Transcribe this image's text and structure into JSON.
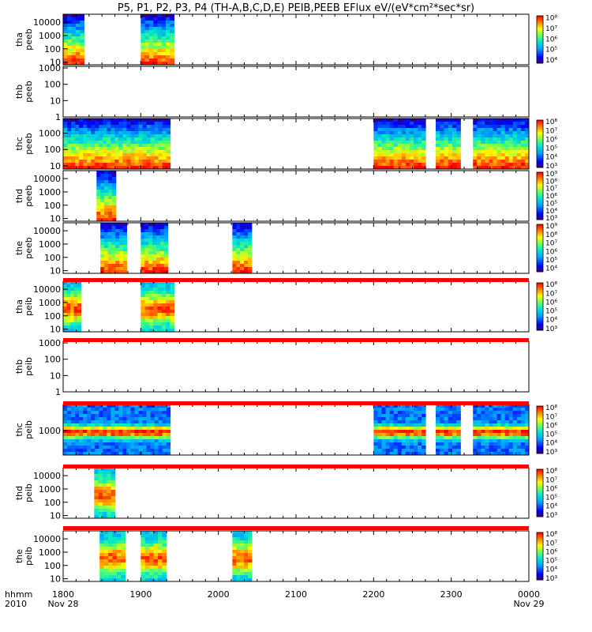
{
  "chart_data": {
    "type": "heatmap",
    "title": "P5, P1, P2, P3, P4 (TH-A,B,C,D,E) PEIB,PEEB EFlux eV/(eV*cm²*sec*sr)",
    "x_axis": {
      "start_hour": 18.0,
      "end_hour": 24.0,
      "ticks": [
        "1800",
        "1900",
        "2000",
        "2100",
        "2200",
        "2300",
        "0000"
      ],
      "left_label_line1": "hhmm",
      "left_label_line2": "2010",
      "start_date": "Nov 28",
      "end_date": "Nov 29"
    },
    "panels": [
      {
        "probe": "tha",
        "product": "peeb",
        "ytick_labels": [
          "10000",
          "1000",
          "100",
          "10"
        ],
        "ylim_log": [
          0.8,
          4.6
        ],
        "colorbar_labels": [
          "10⁸",
          "10⁷",
          "10⁶",
          "10⁵",
          "10⁴"
        ],
        "colorbar_range_log": [
          3.7,
          8.2
        ],
        "intervals": [
          [
            18.0,
            18.27
          ],
          [
            19.0,
            19.43
          ]
        ],
        "profile": "electron"
      },
      {
        "probe": "thb",
        "product": "peeb",
        "ytick_labels": [
          "1000",
          "100",
          "10",
          "1"
        ],
        "ylim_log": [
          0,
          3.1
        ],
        "colorbar_labels": [],
        "intervals": [],
        "profile": "none"
      },
      {
        "probe": "thc",
        "product": "peeb",
        "ytick_labels": [
          "1000",
          "100",
          "10"
        ],
        "ylim_log": [
          0.8,
          3.9
        ],
        "colorbar_labels": [
          "10⁸",
          "10⁷",
          "10⁶",
          "10⁵",
          "10⁴",
          "10³"
        ],
        "colorbar_range_log": [
          2.8,
          8.2
        ],
        "intervals": [
          [
            18.0,
            19.38
          ],
          [
            22.0,
            22.67
          ],
          [
            22.8,
            23.12
          ],
          [
            23.28,
            24.0
          ]
        ],
        "profile": "electron"
      },
      {
        "probe": "thd",
        "product": "peeb",
        "ytick_labels": [
          "10000",
          "1000",
          "100",
          "10"
        ],
        "ylim_log": [
          0.8,
          4.6
        ],
        "colorbar_labels": [
          "10⁹",
          "10⁸",
          "10⁷",
          "10⁶",
          "10⁵",
          "10⁴",
          "10³"
        ],
        "colorbar_range_log": [
          2.8,
          9.2
        ],
        "intervals": [
          [
            18.43,
            18.68
          ]
        ],
        "profile": "electron"
      },
      {
        "probe": "the",
        "product": "peeb",
        "ytick_labels": [
          "10000",
          "1000",
          "100",
          "10"
        ],
        "ylim_log": [
          0.8,
          4.6
        ],
        "colorbar_labels": [
          "10⁹",
          "10⁸",
          "10⁷",
          "10⁶",
          "10⁵",
          "10⁴"
        ],
        "colorbar_range_log": [
          3.6,
          9.2
        ],
        "intervals": [
          [
            18.48,
            18.82
          ],
          [
            19.0,
            19.35
          ],
          [
            20.18,
            20.43
          ]
        ],
        "profile": "electron"
      },
      {
        "probe": "tha",
        "product": "peib",
        "ytick_labels": [
          "10000",
          "1000",
          "100",
          "10"
        ],
        "ylim_log": [
          0.8,
          4.6
        ],
        "colorbar_labels": [
          "10⁸",
          "10⁷",
          "10⁶",
          "10⁵",
          "10⁴",
          "10³"
        ],
        "colorbar_range_log": [
          2.8,
          8.2
        ],
        "intervals": [
          [
            18.0,
            18.23
          ],
          [
            19.0,
            19.43
          ]
        ],
        "profile": "ion"
      },
      {
        "probe": "thb",
        "product": "peib",
        "ytick_labels": [
          "1000",
          "100",
          "10",
          "1"
        ],
        "ylim_log": [
          0,
          3.1
        ],
        "colorbar_labels": [],
        "intervals": [],
        "profile": "none"
      },
      {
        "probe": "thc",
        "product": "peib",
        "ytick_labels": [
          "1000"
        ],
        "ylim_log": [
          1.5,
          4.6
        ],
        "colorbar_labels": [
          "10⁸",
          "10⁷",
          "10⁶",
          "10⁵",
          "10⁴",
          "10³"
        ],
        "colorbar_range_log": [
          2.8,
          8.2
        ],
        "intervals": [
          [
            18.0,
            19.38
          ],
          [
            22.0,
            22.67
          ],
          [
            22.8,
            23.12
          ],
          [
            23.28,
            24.0
          ]
        ],
        "profile": "ionflat"
      },
      {
        "probe": "thd",
        "product": "peib",
        "ytick_labels": [
          "10000",
          "1000",
          "100",
          "10"
        ],
        "ylim_log": [
          0.8,
          4.6
        ],
        "colorbar_labels": [
          "10⁸",
          "10⁷",
          "10⁶",
          "10⁵",
          "10⁴",
          "10³"
        ],
        "colorbar_range_log": [
          2.8,
          8.2
        ],
        "intervals": [
          [
            18.4,
            18.67
          ]
        ],
        "profile": "ion"
      },
      {
        "probe": "the",
        "product": "peib",
        "ytick_labels": [
          "10000",
          "1000",
          "100",
          "10"
        ],
        "ylim_log": [
          0.8,
          4.6
        ],
        "colorbar_labels": [
          "10⁸",
          "10⁷",
          "10⁶",
          "10⁵",
          "10⁴",
          "10³"
        ],
        "colorbar_range_log": [
          2.8,
          8.2
        ],
        "intervals": [
          [
            18.47,
            18.8
          ],
          [
            19.0,
            19.33
          ],
          [
            20.18,
            20.43
          ]
        ],
        "profile": "ion"
      }
    ],
    "grid": false,
    "legend_placement": "right colorbar per panel",
    "colors": {
      "red_bar": "#ff0000",
      "axis": "#000000"
    }
  }
}
